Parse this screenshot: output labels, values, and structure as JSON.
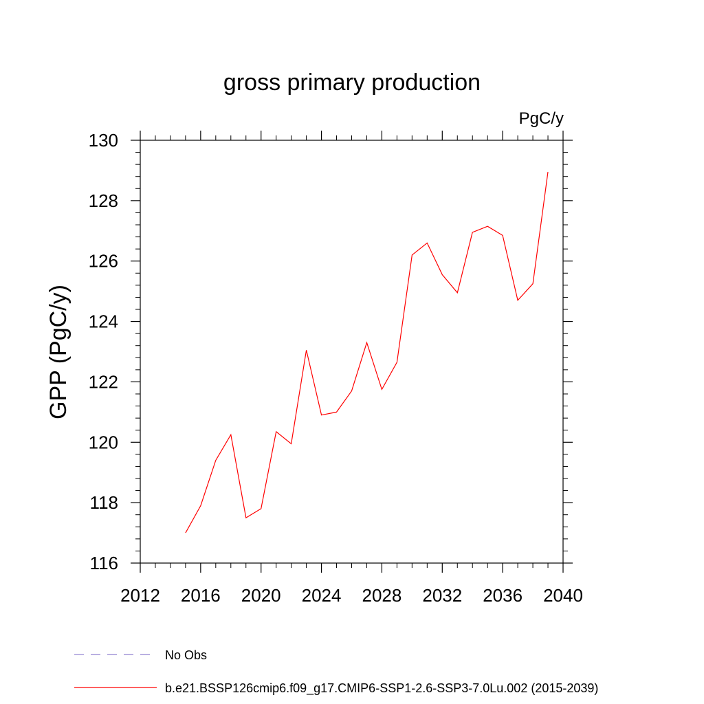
{
  "chart_data": {
    "type": "line",
    "title": "gross primary production",
    "units_label": "PgC/y",
    "ylabel": "GPP  (PgC/y)",
    "xlabel": "",
    "xlim": [
      2012,
      2040
    ],
    "ylim": [
      116,
      130
    ],
    "x_ticks": [
      "2012",
      "2016",
      "2020",
      "2024",
      "2028",
      "2032",
      "2036",
      "2040"
    ],
    "y_ticks": [
      "116",
      "118",
      "120",
      "122",
      "124",
      "126",
      "128",
      "130"
    ],
    "grid": false,
    "legend_position": "bottom",
    "series": [
      {
        "name": "b.e21.BSSP126cmip6.f09_g17.CMIP6-SSP1-2.6-SSP3-7.0Lu.002 (2015-2039)",
        "color": "#ff0000",
        "line_style": "solid",
        "x": [
          2015,
          2016,
          2017,
          2018,
          2019,
          2020,
          2021,
          2022,
          2023,
          2024,
          2025,
          2026,
          2027,
          2028,
          2029,
          2030,
          2031,
          2032,
          2033,
          2034,
          2035,
          2036,
          2037,
          2038,
          2039
        ],
        "y": [
          117.0,
          117.9,
          119.4,
          120.25,
          117.5,
          117.8,
          120.35,
          119.95,
          123.05,
          120.9,
          121.0,
          121.7,
          123.3,
          121.75,
          122.65,
          126.2,
          126.6,
          125.55,
          124.95,
          126.95,
          127.15,
          126.85,
          124.7,
          125.25,
          128.95
        ]
      }
    ],
    "legend": [
      {
        "label": "No Obs",
        "color": "#9080d0",
        "line_style": "dashed"
      },
      {
        "label": "b.e21.BSSP126cmip6.f09_g17.CMIP6-SSP1-2.6-SSP3-7.0Lu.002 (2015-2039)",
        "color": "#ff0000",
        "line_style": "solid"
      }
    ]
  }
}
